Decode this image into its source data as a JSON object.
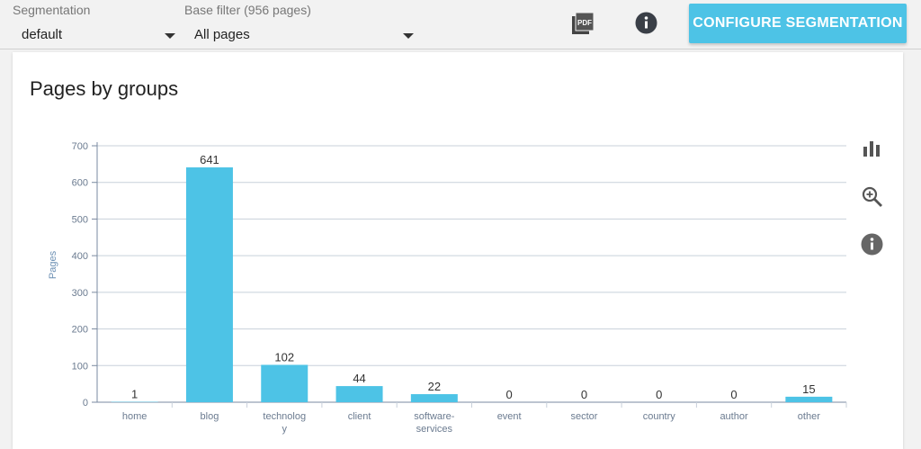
{
  "toolbar": {
    "segmentation_label": "Segmentation",
    "segmentation_value": "default",
    "base_filter_label": "Base filter (956 pages)",
    "base_filter_value": "All pages",
    "pdf_icon_text": "PDF",
    "configure_button": "CONFIGURE SEGMENTATION"
  },
  "card": {
    "title": "Pages by groups"
  },
  "side_icons": [
    "bar-chart-icon",
    "zoom-in-icon",
    "info-icon"
  ],
  "colors": {
    "bar": "#4dc3e6",
    "accent_button": "#4dc3e6"
  },
  "chart_data": {
    "type": "bar",
    "title": "Pages by groups",
    "categories": [
      "home",
      "blog",
      "technology",
      "client",
      "software-services",
      "event",
      "sector",
      "country",
      "author",
      "other"
    ],
    "category_labels": [
      [
        "home"
      ],
      [
        "blog"
      ],
      [
        "technolog",
        "y"
      ],
      [
        "client"
      ],
      [
        "software-",
        "services"
      ],
      [
        "event"
      ],
      [
        "sector"
      ],
      [
        "country"
      ],
      [
        "author"
      ],
      [
        "other"
      ]
    ],
    "values": [
      1,
      641,
      102,
      44,
      22,
      0,
      0,
      0,
      0,
      15
    ],
    "data_labels": [
      "1",
      "641",
      "102",
      "44",
      "22",
      "0",
      "0",
      "0",
      "0",
      "15"
    ],
    "ylabel": "Pages",
    "xlabel": "",
    "ylim": [
      0,
      700
    ],
    "yticks": [
      0,
      100,
      200,
      300,
      400,
      500,
      600,
      700
    ],
    "grid": true
  }
}
